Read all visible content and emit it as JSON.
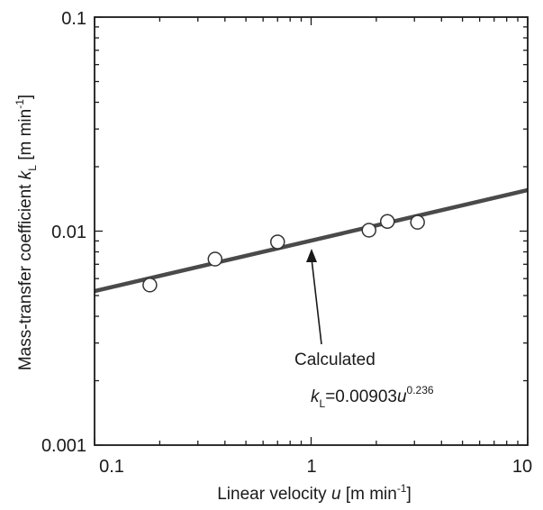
{
  "chart_data": {
    "type": "scatter",
    "title": "",
    "xscale": "log",
    "yscale": "log",
    "xlim": [
      0.1,
      10
    ],
    "ylim": [
      0.001,
      0.1
    ],
    "grid": false,
    "xticks": [
      "0.1",
      "1",
      "10"
    ],
    "yticks": [
      "0.001",
      "0.01",
      "0.1"
    ],
    "xlabel": {
      "text": "Linear velocity",
      "var": "u",
      "unit_pre": "[m min",
      "unit_exp": "-1",
      "unit_post": "]"
    },
    "ylabel": {
      "text": "Mass-transfer coefficient",
      "var": "k",
      "var_sub": "L",
      "unit_pre": "[m min",
      "unit_exp": "-1",
      "unit_post": "]"
    },
    "series": [
      {
        "kind": "scatter",
        "marker": "open-circle",
        "points": [
          {
            "x": 0.18,
            "y": 0.0056
          },
          {
            "x": 0.36,
            "y": 0.0074
          },
          {
            "x": 0.7,
            "y": 0.0089
          },
          {
            "x": 1.85,
            "y": 0.0101
          },
          {
            "x": 2.25,
            "y": 0.0111
          },
          {
            "x": 3.1,
            "y": 0.011
          }
        ]
      },
      {
        "kind": "line",
        "equation": {
          "coef": 0.00903,
          "exp": 0.236
        },
        "x_range": [
          0.1,
          10
        ]
      }
    ],
    "annotation": {
      "label": "Calculated",
      "eq_var": "k",
      "eq_sub": "L",
      "eq_mid": "=0.00903",
      "eq_base": "u",
      "eq_exp": "0.236",
      "arrow_target": {
        "x": 1.0,
        "y": 0.0091
      }
    },
    "colors": {
      "axis": "#1a1a1a",
      "line": "#4a4a4a",
      "marker_fill": "#ffffff",
      "marker_stroke": "#333333"
    }
  }
}
